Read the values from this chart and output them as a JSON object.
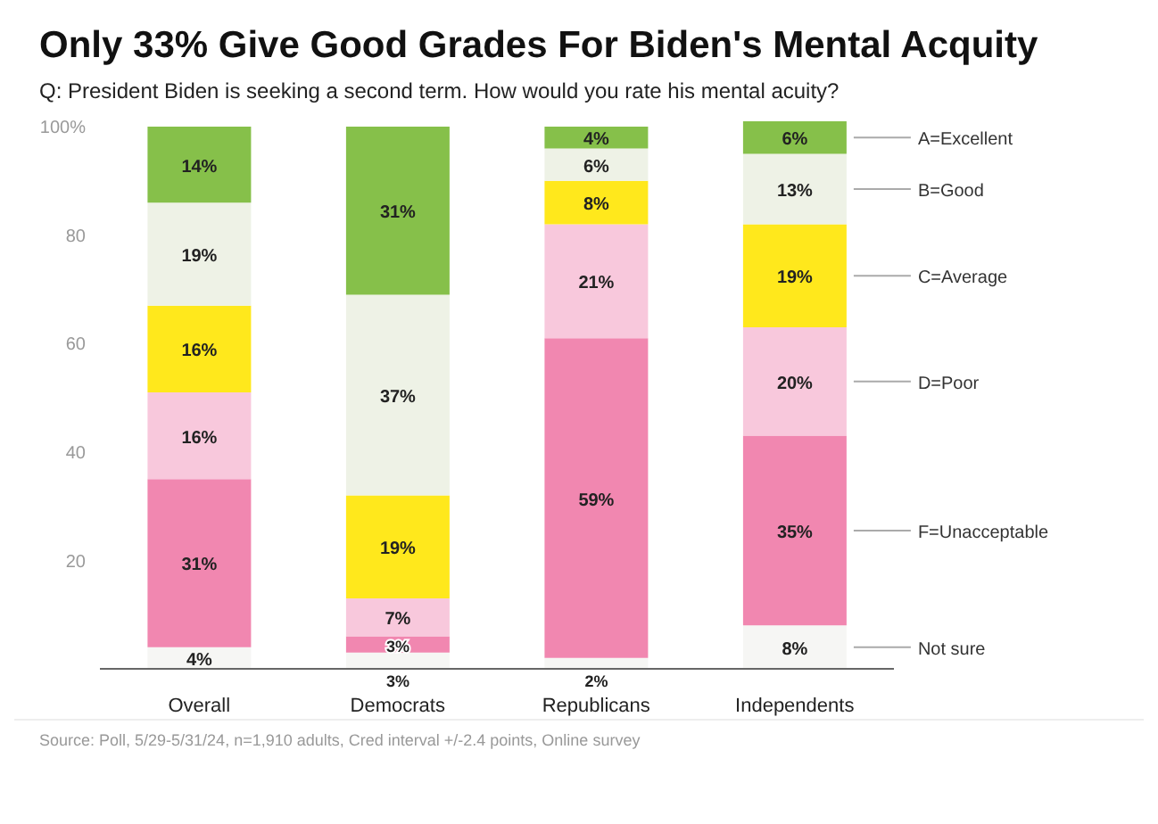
{
  "chart_data": {
    "type": "bar",
    "stacked": true,
    "title": "Only 33% Give Good Grades For Biden's Mental Acquity",
    "subtitle": "Q: President Biden is seeking a second term. How would you rate his mental acuity?",
    "categories": [
      "Overall",
      "Democrats",
      "Republicans",
      "Independents"
    ],
    "series": [
      {
        "name": "Not sure",
        "color": "#f6f6f4",
        "values": [
          4,
          3,
          2,
          8
        ],
        "value_labels": [
          "4%",
          "3%",
          "2%",
          "8%"
        ]
      },
      {
        "name": "F=Unacceptable",
        "color": "#f187b0",
        "values": [
          31,
          3,
          59,
          35
        ],
        "value_labels": [
          "31%",
          "3%",
          "59%",
          "35%"
        ]
      },
      {
        "name": "D=Poor",
        "color": "#f8c8dc",
        "values": [
          16,
          7,
          21,
          20
        ],
        "value_labels": [
          "16%",
          "7%",
          "21%",
          "20%"
        ]
      },
      {
        "name": "C=Average",
        "color": "#ffe81c",
        "values": [
          16,
          19,
          8,
          19
        ],
        "value_labels": [
          "16%",
          "19%",
          "8%",
          "19%"
        ]
      },
      {
        "name": "B=Good",
        "color": "#eef2e6",
        "values": [
          19,
          37,
          6,
          13
        ],
        "value_labels": [
          "19%",
          "37%",
          "6%",
          "13%"
        ]
      },
      {
        "name": "A=Excellent",
        "color": "#86c04a",
        "values": [
          14,
          31,
          4,
          6
        ],
        "value_labels": [
          "14%",
          "31%",
          "4%",
          "6%"
        ]
      }
    ],
    "ylim": [
      0,
      101
    ],
    "yticks": [
      20,
      40,
      60,
      80,
      {
        "value": 100,
        "label": "100%"
      }
    ],
    "grid": false,
    "legend": false,
    "annotations": [
      "Source: Poll, 5/29-5/31/24, n=1,910 adults, Cred interval +/-2.4 points, Online survey"
    ]
  }
}
